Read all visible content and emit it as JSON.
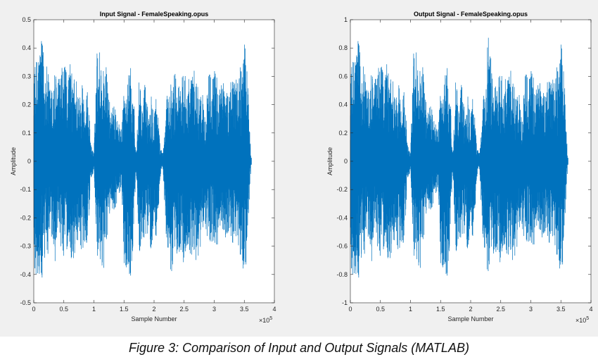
{
  "figure_caption": "Figure 3: Comparison of Input and Output Signals (MATLAB)",
  "colors": {
    "background": "#f0f0f0",
    "axes_bg": "#ffffff",
    "signal": "#0072bd"
  },
  "chart_data": [
    {
      "type": "line",
      "title": "Input Signal - FemaleSpeaking.opus",
      "xlabel": "Sample Number",
      "ylabel": "Amplitude",
      "x_exponent_label": "×10^5",
      "xlim": [
        0,
        4
      ],
      "ylim": [
        -0.5,
        0.5
      ],
      "xticks": [
        "0",
        "0.5",
        "1",
        "1.5",
        "2",
        "2.5",
        "3",
        "3.5",
        "4"
      ],
      "yticks": [
        "0.5",
        "0.4",
        "0.3",
        "0.2",
        "0.1",
        "0",
        "-0.1",
        "-0.2",
        "-0.3",
        "-0.4",
        "-0.5"
      ],
      "grid": false,
      "series": [
        {
          "color": "#0072bd",
          "envelope": {
            "x": [
              0.0,
              0.05,
              0.1,
              0.15,
              0.2,
              0.25,
              0.3,
              0.35,
              0.4,
              0.45,
              0.5,
              0.55,
              0.6,
              0.65,
              0.7,
              0.75,
              0.8,
              0.85,
              0.9,
              0.95,
              1.0,
              1.05,
              1.1,
              1.15,
              1.2,
              1.25,
              1.3,
              1.35,
              1.4,
              1.45,
              1.5,
              1.55,
              1.6,
              1.65,
              1.7,
              1.75,
              1.8,
              1.85,
              1.9,
              1.95,
              2.0,
              2.05,
              2.1,
              2.15,
              2.2,
              2.25,
              2.3,
              2.35,
              2.4,
              2.45,
              2.5,
              2.55,
              2.6,
              2.65,
              2.7,
              2.75,
              2.8,
              2.85,
              2.9,
              2.95,
              3.0,
              3.05,
              3.1,
              3.15,
              3.2,
              3.25,
              3.3,
              3.35,
              3.4,
              3.45,
              3.5,
              3.55,
              3.6,
              3.62
            ],
            "upper": [
              0.3,
              0.38,
              0.43,
              0.42,
              0.36,
              0.3,
              0.26,
              0.33,
              0.29,
              0.32,
              0.35,
              0.31,
              0.36,
              0.29,
              0.33,
              0.22,
              0.32,
              0.2,
              0.26,
              0.06,
              0.03,
              0.4,
              0.4,
              0.34,
              0.35,
              0.22,
              0.18,
              0.22,
              0.15,
              0.1,
              0.28,
              0.28,
              0.34,
              0.3,
              0.02,
              0.3,
              0.19,
              0.3,
              0.18,
              0.26,
              0.21,
              0.25,
              0.05,
              0.03,
              0.2,
              0.29,
              0.27,
              0.33,
              0.28,
              0.29,
              0.33,
              0.32,
              0.29,
              0.33,
              0.3,
              0.26,
              0.25,
              0.16,
              0.33,
              0.32,
              0.33,
              0.3,
              0.28,
              0.3,
              0.27,
              0.26,
              0.3,
              0.33,
              0.28,
              0.36,
              0.42,
              0.35,
              0.07,
              0.0
            ],
            "lower": [
              -0.38,
              -0.43,
              -0.44,
              -0.45,
              -0.34,
              -0.34,
              -0.3,
              -0.36,
              -0.3,
              -0.32,
              -0.34,
              -0.32,
              -0.32,
              -0.38,
              -0.32,
              -0.26,
              -0.33,
              -0.28,
              -0.3,
              -0.06,
              -0.04,
              -0.37,
              -0.36,
              -0.38,
              -0.38,
              -0.2,
              -0.16,
              -0.2,
              -0.14,
              -0.1,
              -0.36,
              -0.38,
              -0.44,
              -0.3,
              -0.03,
              -0.35,
              -0.27,
              -0.31,
              -0.25,
              -0.32,
              -0.26,
              -0.28,
              -0.06,
              -0.03,
              -0.3,
              -0.33,
              -0.48,
              -0.32,
              -0.34,
              -0.32,
              -0.37,
              -0.34,
              -0.34,
              -0.33,
              -0.37,
              -0.35,
              -0.26,
              -0.22,
              -0.3,
              -0.3,
              -0.3,
              -0.3,
              -0.27,
              -0.26,
              -0.3,
              -0.26,
              -0.3,
              -0.32,
              -0.3,
              -0.36,
              -0.42,
              -0.33,
              -0.07,
              0.0
            ]
          }
        }
      ]
    },
    {
      "type": "line",
      "title": "Output Signal - FemaleSpeaking.opus",
      "xlabel": "Sample Number",
      "ylabel": "Amplitude",
      "x_exponent_label": "×10^5",
      "xlim": [
        0,
        4
      ],
      "ylim": [
        -1,
        1
      ],
      "xticks": [
        "0",
        "0.5",
        "1",
        "1.5",
        "2",
        "2.5",
        "3",
        "3.5",
        "4"
      ],
      "yticks": [
        "1",
        "0.8",
        "0.6",
        "0.4",
        "0.2",
        "0",
        "-0.2",
        "-0.4",
        "-0.6",
        "-0.8",
        "-1"
      ],
      "grid": false,
      "series": [
        {
          "color": "#0072bd",
          "envelope": {
            "x": [
              0.0,
              0.05,
              0.1,
              0.15,
              0.2,
              0.25,
              0.3,
              0.35,
              0.4,
              0.45,
              0.5,
              0.55,
              0.6,
              0.65,
              0.7,
              0.75,
              0.8,
              0.85,
              0.9,
              0.95,
              1.0,
              1.05,
              1.1,
              1.15,
              1.2,
              1.25,
              1.3,
              1.35,
              1.4,
              1.45,
              1.5,
              1.55,
              1.6,
              1.65,
              1.7,
              1.75,
              1.8,
              1.85,
              1.9,
              1.95,
              2.0,
              2.05,
              2.1,
              2.15,
              2.2,
              2.25,
              2.3,
              2.35,
              2.4,
              2.45,
              2.5,
              2.55,
              2.6,
              2.65,
              2.7,
              2.75,
              2.8,
              2.85,
              2.9,
              2.95,
              3.0,
              3.05,
              3.1,
              3.15,
              3.2,
              3.25,
              3.3,
              3.35,
              3.4,
              3.45,
              3.5,
              3.55,
              3.6,
              3.62
            ],
            "upper": [
              0.6,
              0.76,
              0.86,
              0.84,
              0.72,
              0.6,
              0.52,
              0.66,
              0.58,
              0.64,
              0.7,
              0.62,
              0.72,
              0.58,
              0.66,
              0.44,
              0.64,
              0.4,
              0.52,
              0.12,
              0.06,
              0.8,
              0.8,
              0.68,
              0.7,
              0.44,
              0.36,
              0.44,
              0.3,
              0.2,
              0.56,
              0.56,
              0.68,
              0.6,
              0.04,
              0.6,
              0.38,
              0.6,
              0.36,
              0.52,
              0.42,
              0.5,
              0.1,
              0.06,
              0.4,
              0.58,
              1.0,
              0.66,
              0.56,
              0.58,
              0.66,
              0.64,
              0.58,
              0.66,
              0.6,
              0.52,
              0.5,
              0.32,
              0.66,
              0.64,
              0.66,
              0.6,
              0.56,
              0.6,
              0.54,
              0.52,
              0.6,
              0.66,
              0.56,
              0.72,
              0.84,
              0.7,
              0.14,
              0.0
            ],
            "lower": [
              -0.76,
              -0.86,
              -0.88,
              -0.9,
              -0.68,
              -0.68,
              -0.6,
              -0.72,
              -0.6,
              -0.64,
              -0.68,
              -0.64,
              -0.64,
              -0.76,
              -0.64,
              -0.52,
              -0.66,
              -0.56,
              -0.6,
              -0.12,
              -0.08,
              -0.74,
              -0.72,
              -0.76,
              -0.76,
              -0.4,
              -0.32,
              -0.4,
              -0.28,
              -0.2,
              -0.72,
              -0.76,
              -0.88,
              -0.6,
              -0.06,
              -0.7,
              -0.54,
              -0.62,
              -0.5,
              -0.64,
              -0.52,
              -0.56,
              -0.12,
              -0.06,
              -0.6,
              -0.66,
              -0.96,
              -0.64,
              -0.68,
              -0.64,
              -0.74,
              -0.68,
              -0.68,
              -0.66,
              -0.74,
              -0.7,
              -0.52,
              -0.44,
              -0.6,
              -0.6,
              -0.6,
              -0.6,
              -0.54,
              -0.52,
              -0.6,
              -0.52,
              -0.6,
              -0.64,
              -0.6,
              -0.72,
              -0.84,
              -0.66,
              -0.14,
              0.0
            ]
          }
        }
      ]
    }
  ]
}
